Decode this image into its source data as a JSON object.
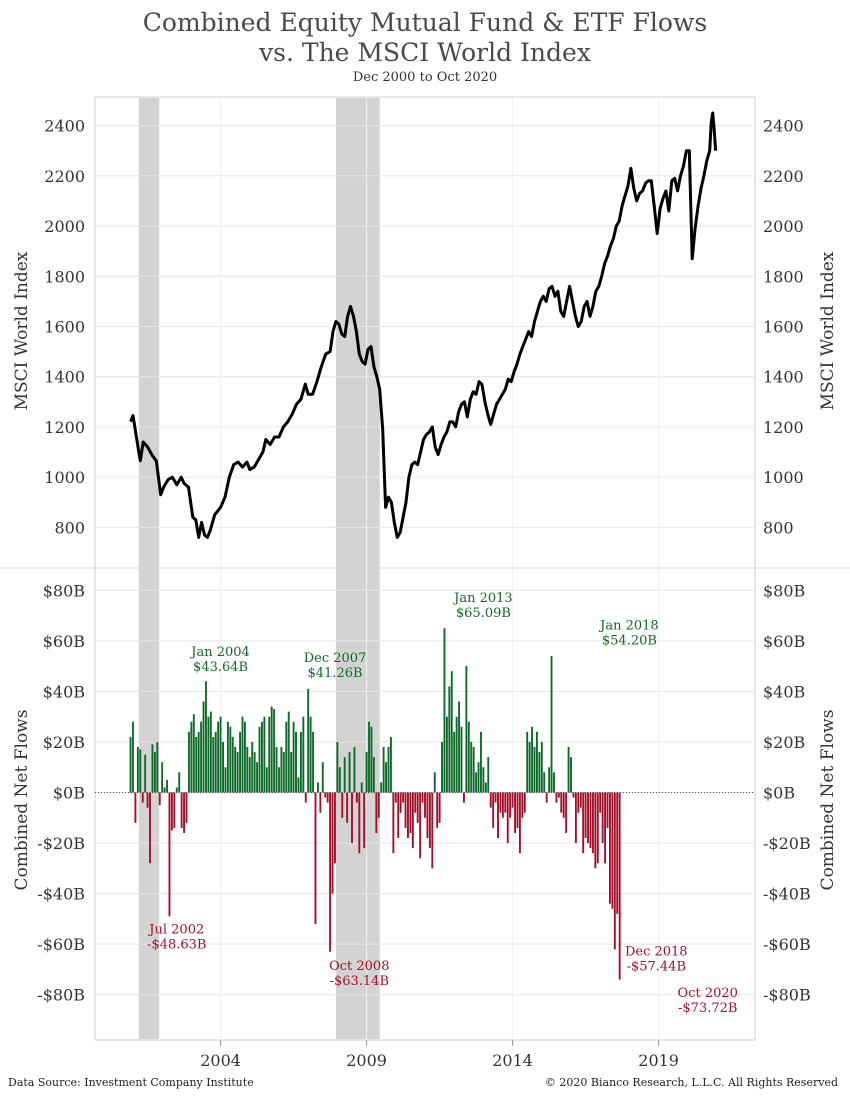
{
  "header": {
    "title_line1": "Combined Equity Mutual Fund & ETF Flows",
    "title_line2": "vs. The MSCI World Index",
    "subtitle": "Dec 2000 to Oct 2020"
  },
  "footer": {
    "source": "Data Source: Investment Company Institute",
    "copyright": "© 2020 Bianco Research, L.L.C. All Rights Reserved"
  },
  "colors": {
    "index_line": "#000000",
    "inflow": "#0e6b2a",
    "outflow": "#a3102a",
    "recession": "#d3d3d3",
    "grid": "#e6e6e6"
  },
  "chart_data": [
    {
      "type": "line",
      "name": "msci-world-index",
      "ylabel_left": "MSCI World Index",
      "ylabel_right": "MSCI World Index",
      "ylim": [
        690,
        2470
      ],
      "yticks": [
        800,
        1000,
        1200,
        1400,
        1600,
        1800,
        2000,
        2200,
        2400
      ],
      "x_range": [
        1999.7,
        2022.3
      ],
      "x_ticks": [
        2004,
        2009,
        2014,
        2019
      ],
      "grid": true,
      "recessions": [
        [
          2001.2,
          2001.9
        ],
        [
          2007.95,
          2009.45
        ]
      ],
      "points": [
        [
          2000.92,
          1221
        ],
        [
          2001.0,
          1245
        ],
        [
          2001.2,
          1100
        ],
        [
          2001.25,
          1065
        ],
        [
          2001.35,
          1140
        ],
        [
          2001.5,
          1120
        ],
        [
          2001.67,
          1085
        ],
        [
          2001.8,
          1065
        ],
        [
          2001.95,
          930
        ],
        [
          2002.05,
          960
        ],
        [
          2002.2,
          990
        ],
        [
          2002.35,
          1000
        ],
        [
          2002.5,
          970
        ],
        [
          2002.65,
          1000
        ],
        [
          2002.75,
          975
        ],
        [
          2002.9,
          960
        ],
        [
          2003.05,
          840
        ],
        [
          2003.15,
          830
        ],
        [
          2003.25,
          760
        ],
        [
          2003.35,
          820
        ],
        [
          2003.45,
          770
        ],
        [
          2003.55,
          760
        ],
        [
          2003.65,
          790
        ],
        [
          2003.8,
          850
        ],
        [
          2004.0,
          880
        ],
        [
          2004.15,
          920
        ],
        [
          2004.3,
          1000
        ],
        [
          2004.45,
          1050
        ],
        [
          2004.6,
          1060
        ],
        [
          2004.75,
          1040
        ],
        [
          2004.9,
          1060
        ],
        [
          2005.0,
          1030
        ],
        [
          2005.15,
          1040
        ],
        [
          2005.3,
          1070
        ],
        [
          2005.45,
          1100
        ],
        [
          2005.55,
          1150
        ],
        [
          2005.7,
          1130
        ],
        [
          2005.85,
          1160
        ],
        [
          2006.0,
          1160
        ],
        [
          2006.15,
          1200
        ],
        [
          2006.3,
          1220
        ],
        [
          2006.45,
          1250
        ],
        [
          2006.6,
          1290
        ],
        [
          2006.75,
          1310
        ],
        [
          2006.9,
          1370
        ],
        [
          2007.0,
          1330
        ],
        [
          2007.15,
          1330
        ],
        [
          2007.3,
          1380
        ],
        [
          2007.45,
          1440
        ],
        [
          2007.6,
          1490
        ],
        [
          2007.75,
          1500
        ],
        [
          2007.85,
          1580
        ],
        [
          2007.95,
          1620
        ],
        [
          2008.05,
          1610
        ],
        [
          2008.15,
          1570
        ],
        [
          2008.25,
          1560
        ],
        [
          2008.35,
          1640
        ],
        [
          2008.45,
          1680
        ],
        [
          2008.55,
          1640
        ],
        [
          2008.65,
          1580
        ],
        [
          2008.75,
          1490
        ],
        [
          2008.85,
          1460
        ],
        [
          2008.95,
          1450
        ],
        [
          2009.05,
          1510
        ],
        [
          2009.15,
          1520
        ],
        [
          2009.25,
          1440
        ],
        [
          2009.35,
          1400
        ],
        [
          2009.45,
          1350
        ],
        [
          2009.55,
          1190
        ],
        [
          2009.65,
          880
        ],
        [
          2009.75,
          920
        ],
        [
          2009.85,
          900
        ],
        [
          2009.95,
          820
        ],
        [
          2010.05,
          760
        ],
        [
          2010.15,
          780
        ],
        [
          2010.25,
          840
        ],
        [
          2010.35,
          900
        ],
        [
          2010.45,
          1000
        ],
        [
          2010.55,
          1050
        ],
        [
          2010.65,
          1060
        ],
        [
          2010.75,
          1050
        ],
        [
          2010.85,
          1100
        ],
        [
          2010.95,
          1150
        ],
        [
          2011.05,
          1170
        ],
        [
          2011.15,
          1180
        ],
        [
          2011.25,
          1200
        ],
        [
          2011.35,
          1120
        ],
        [
          2011.45,
          1090
        ],
        [
          2011.55,
          1130
        ],
        [
          2011.65,
          1160
        ],
        [
          2011.75,
          1180
        ],
        [
          2011.85,
          1220
        ],
        [
          2011.95,
          1220
        ],
        [
          2012.05,
          1200
        ],
        [
          2012.15,
          1260
        ],
        [
          2012.25,
          1290
        ],
        [
          2012.35,
          1300
        ],
        [
          2012.45,
          1240
        ],
        [
          2012.55,
          1310
        ],
        [
          2012.65,
          1340
        ],
        [
          2012.75,
          1330
        ],
        [
          2012.85,
          1380
        ],
        [
          2012.95,
          1370
        ],
        [
          2013.05,
          1300
        ],
        [
          2013.15,
          1250
        ],
        [
          2013.25,
          1210
        ],
        [
          2013.35,
          1250
        ],
        [
          2013.45,
          1290
        ],
        [
          2013.55,
          1310
        ],
        [
          2013.65,
          1330
        ],
        [
          2013.75,
          1350
        ],
        [
          2013.85,
          1390
        ],
        [
          2013.95,
          1380
        ],
        [
          2014.05,
          1420
        ],
        [
          2014.15,
          1450
        ],
        [
          2014.25,
          1490
        ],
        [
          2014.35,
          1520
        ],
        [
          2014.45,
          1550
        ],
        [
          2014.55,
          1580
        ],
        [
          2014.65,
          1560
        ],
        [
          2014.75,
          1620
        ],
        [
          2014.85,
          1660
        ],
        [
          2014.95,
          1700
        ],
        [
          2015.05,
          1720
        ],
        [
          2015.15,
          1700
        ],
        [
          2015.25,
          1750
        ],
        [
          2015.35,
          1760
        ],
        [
          2015.45,
          1720
        ],
        [
          2015.55,
          1740
        ],
        [
          2015.65,
          1660
        ],
        [
          2015.75,
          1640
        ],
        [
          2015.85,
          1700
        ],
        [
          2015.95,
          1760
        ],
        [
          2016.05,
          1700
        ],
        [
          2016.15,
          1640
        ],
        [
          2016.25,
          1600
        ],
        [
          2016.35,
          1620
        ],
        [
          2016.45,
          1680
        ],
        [
          2016.55,
          1700
        ],
        [
          2016.65,
          1640
        ],
        [
          2016.75,
          1680
        ],
        [
          2016.85,
          1740
        ],
        [
          2016.95,
          1760
        ],
        [
          2017.05,
          1800
        ],
        [
          2017.15,
          1850
        ],
        [
          2017.25,
          1880
        ],
        [
          2017.35,
          1920
        ],
        [
          2017.45,
          1950
        ],
        [
          2017.55,
          2000
        ],
        [
          2017.65,
          2020
        ],
        [
          2017.75,
          2080
        ],
        [
          2017.85,
          2120
        ],
        [
          2017.95,
          2160
        ],
        [
          2018.05,
          2230
        ],
        [
          2018.15,
          2150
        ],
        [
          2018.25,
          2100
        ],
        [
          2018.35,
          2130
        ],
        [
          2018.45,
          2140
        ],
        [
          2018.55,
          2170
        ],
        [
          2018.65,
          2180
        ],
        [
          2018.75,
          2180
        ],
        [
          2018.85,
          2080
        ],
        [
          2018.95,
          1970
        ],
        [
          2019.05,
          2070
        ],
        [
          2019.15,
          2110
        ],
        [
          2019.25,
          2140
        ],
        [
          2019.35,
          2060
        ],
        [
          2019.45,
          2180
        ],
        [
          2019.55,
          2190
        ],
        [
          2019.65,
          2140
        ],
        [
          2019.75,
          2200
        ],
        [
          2019.85,
          2240
        ],
        [
          2019.95,
          2300
        ],
        [
          2020.05,
          2300
        ],
        [
          2020.15,
          1870
        ],
        [
          2020.25,
          1990
        ],
        [
          2020.35,
          2080
        ],
        [
          2020.45,
          2150
        ],
        [
          2020.55,
          2200
        ],
        [
          2020.65,
          2260
        ],
        [
          2020.75,
          2300
        ],
        [
          2020.8,
          2410
        ],
        [
          2020.85,
          2450
        ],
        [
          2020.9,
          2390
        ],
        [
          2020.95,
          2300
        ]
      ]
    },
    {
      "type": "bar",
      "name": "combined-net-flows",
      "ylabel_left": "Combined Net Flows",
      "ylabel_right": "Combined Net Flows",
      "ylim": [
        -90,
        90
      ],
      "yticks": [
        {
          "value": 80,
          "label": "$80B"
        },
        {
          "value": 60,
          "label": "$60B"
        },
        {
          "value": 40,
          "label": "$40B"
        },
        {
          "value": 20,
          "label": "$20B"
        },
        {
          "value": 0,
          "label": "$0B"
        },
        {
          "value": -20,
          "label": "-$20B"
        },
        {
          "value": -40,
          "label": "-$40B"
        },
        {
          "value": -60,
          "label": "-$60B"
        },
        {
          "value": -80,
          "label": "-$80B"
        }
      ],
      "x_start": 2000.917,
      "x_step": 0.08333,
      "values_billions": [
        22,
        28,
        -12,
        18,
        17,
        -4,
        15,
        -6,
        -28,
        19,
        16,
        20,
        -5,
        12,
        2,
        5,
        -49,
        -15,
        -14,
        2,
        8,
        -14,
        -16,
        -12,
        24,
        28,
        31,
        22,
        24,
        28,
        36,
        44,
        30,
        32,
        22,
        24,
        28,
        30,
        20,
        10,
        28,
        26,
        22,
        18,
        16,
        24,
        30,
        28,
        18,
        14,
        20,
        16,
        12,
        26,
        28,
        30,
        10,
        30,
        34,
        33,
        18,
        10,
        18,
        16,
        28,
        32,
        16,
        28,
        24,
        6,
        24,
        30,
        -4,
        41,
        30,
        24,
        -52,
        4,
        -8,
        12,
        -2,
        -4,
        -63,
        -40,
        -28,
        20,
        10,
        -10,
        14,
        -12,
        16,
        -20,
        18,
        -4,
        -24,
        4,
        -22,
        16,
        28,
        26,
        14,
        -16,
        -10,
        4,
        18,
        12,
        18,
        22,
        -24,
        -4,
        -18,
        -8,
        -4,
        -14,
        -18,
        -16,
        -22,
        -8,
        -12,
        -26,
        -4,
        -10,
        -18,
        -22,
        -30,
        8,
        -14,
        -12,
        20,
        65,
        30,
        42,
        48,
        24,
        30,
        36,
        26,
        -4,
        50,
        28,
        20,
        18,
        8,
        12,
        24,
        10,
        4,
        14,
        -6,
        -14,
        -4,
        -18,
        -8,
        -10,
        -8,
        -20,
        -10,
        -6,
        -16,
        -14,
        -24,
        -10,
        -8,
        24,
        20,
        26,
        18,
        24,
        16,
        20,
        8,
        -4,
        10,
        54,
        8,
        -4,
        -2,
        -8,
        -10,
        -16,
        18,
        14,
        -2,
        -20,
        -8,
        -6,
        -24,
        -18,
        -20,
        -22,
        -24,
        -30,
        -28,
        -8,
        -20,
        -28,
        -14,
        -44,
        -46,
        -62,
        -48,
        -74
      ],
      "annotations": [
        {
          "x": 2004.0,
          "value": 43.64,
          "date": "Jan 2004",
          "amount": "$43.64B"
        },
        {
          "x": 2007.92,
          "value": 41.26,
          "date": "Dec 2007",
          "amount": "$41.26B"
        },
        {
          "x": 2013.0,
          "value": 65.09,
          "date": "Jan 2013",
          "amount": "$65.09B"
        },
        {
          "x": 2018.0,
          "value": 54.2,
          "date": "Jan 2018",
          "amount": "$54.20B"
        },
        {
          "x": 2002.5,
          "value": -48.63,
          "date": "Jul 2002",
          "amount": "-$48.63B"
        },
        {
          "x": 2008.75,
          "value": -63.14,
          "date": "Oct 2008",
          "amount": "-$63.14B"
        },
        {
          "x": 2018.92,
          "value": -57.44,
          "date": "Dec 2018",
          "amount": "-$57.44B"
        },
        {
          "x": 2020.75,
          "value": -73.72,
          "date": "Oct 2020",
          "amount": "-$73.72B"
        }
      ]
    }
  ]
}
